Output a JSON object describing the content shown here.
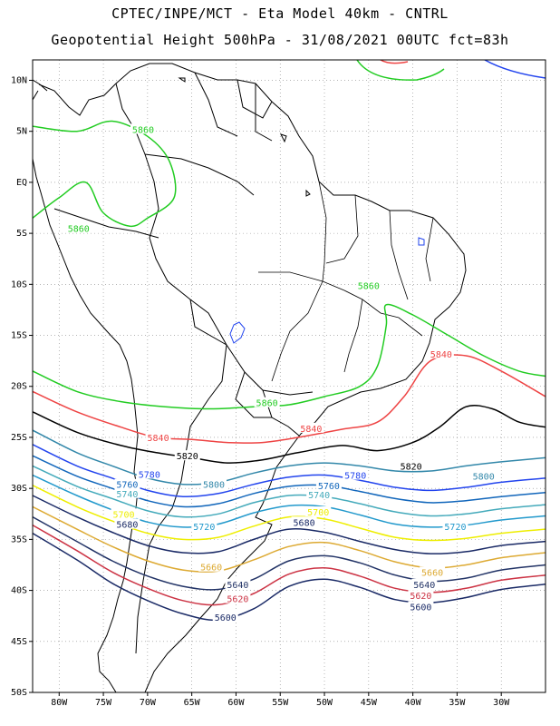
{
  "header": {
    "line1": "CPTEC/INPE/MCT  -  Eta Model 40km  - CNTRL",
    "line2": "Geopotential Height 500hPa  - 31/08/2021 00UTC fct=83h"
  },
  "axes": {
    "lon_range": [
      -83,
      -25
    ],
    "lat_range": [
      -50,
      12
    ],
    "x_ticks": [
      {
        "lon": -80,
        "label": "80W"
      },
      {
        "lon": -75,
        "label": "75W"
      },
      {
        "lon": -70,
        "label": "70W"
      },
      {
        "lon": -65,
        "label": "65W"
      },
      {
        "lon": -60,
        "label": "60W"
      },
      {
        "lon": -55,
        "label": "55W"
      },
      {
        "lon": -50,
        "label": "50W"
      },
      {
        "lon": -45,
        "label": "45W"
      },
      {
        "lon": -40,
        "label": "40W"
      },
      {
        "lon": -35,
        "label": "35W"
      },
      {
        "lon": -30,
        "label": "30W"
      }
    ],
    "y_ticks": [
      {
        "lat": 10,
        "label": "10N"
      },
      {
        "lat": 5,
        "label": "5N"
      },
      {
        "lat": 0,
        "label": "EQ"
      },
      {
        "lat": -5,
        "label": "5S"
      },
      {
        "lat": -10,
        "label": "10S"
      },
      {
        "lat": -15,
        "label": "15S"
      },
      {
        "lat": -20,
        "label": "20S"
      },
      {
        "lat": -25,
        "label": "25S"
      },
      {
        "lat": -30,
        "label": "30S"
      },
      {
        "lat": -35,
        "label": "35S"
      },
      {
        "lat": -40,
        "label": "40S"
      },
      {
        "lat": -45,
        "label": "45S"
      },
      {
        "lat": -50,
        "label": "50S"
      }
    ],
    "grid": "dotted"
  },
  "colors": {
    "c5860": "#22cc22",
    "c5840": "#ee4444",
    "c5820": "#000000",
    "c5800": "#3388aa",
    "c5780": "#2244ee",
    "c5760": "#1166bb",
    "c5740": "#44aabb",
    "c5720": "#2299cc",
    "c5700": "#eeee00",
    "c5680": "#1a2a66",
    "c5660": "#ddaa33",
    "c5640": "#223366",
    "c5620": "#cc3344",
    "c5600": "#1a2a66",
    "coast": "#000000"
  },
  "contours": [
    {
      "value": "5860",
      "color": "#22cc22",
      "points": [
        [
          -83,
          -18.5
        ],
        [
          -78,
          -20.5
        ],
        [
          -73,
          -21.5
        ],
        [
          -68,
          -22
        ],
        [
          -63,
          -22.2
        ],
        [
          -58,
          -22
        ],
        [
          -54,
          -21.8
        ],
        [
          -50,
          -21
        ],
        [
          -46,
          -20
        ],
        [
          -44,
          -18
        ],
        [
          -43,
          -14
        ],
        [
          -43,
          -12
        ],
        [
          -40,
          -13
        ],
        [
          -36,
          -15
        ],
        [
          -32,
          -17
        ],
        [
          -28,
          -18.5
        ],
        [
          -25,
          -19
        ]
      ]
    },
    {
      "value": "5860",
      "color": "#22cc22",
      "points": [
        [
          -83,
          -3.5
        ],
        [
          -80,
          -1.5
        ],
        [
          -77,
          0
        ],
        [
          -75,
          -3
        ],
        [
          -72,
          -4.3
        ],
        [
          -70,
          -3.5
        ],
        [
          -67,
          -1.5
        ],
        [
          -67.5,
          2
        ],
        [
          -70,
          4.5
        ],
        [
          -74,
          6
        ],
        [
          -78,
          5
        ],
        [
          -83,
          5.5
        ]
      ]
    },
    {
      "value": "5840",
      "color": "#ee4444",
      "points": [
        [
          -83,
          -20.5
        ],
        [
          -78,
          -22.5
        ],
        [
          -73,
          -24
        ],
        [
          -69,
          -25
        ],
        [
          -65,
          -25.2
        ],
        [
          -61,
          -25.5
        ],
        [
          -57,
          -25.5
        ],
        [
          -53,
          -25
        ],
        [
          -48,
          -24.2
        ],
        [
          -44,
          -23.5
        ],
        [
          -41,
          -21
        ],
        [
          -38,
          -17.5
        ],
        [
          -34,
          -17
        ],
        [
          -30,
          -18.5
        ],
        [
          -25,
          -21
        ]
      ]
    },
    {
      "value": "5820",
      "color": "#000000",
      "points": [
        [
          -83,
          -22.5
        ],
        [
          -78,
          -24.5
        ],
        [
          -73,
          -25.8
        ],
        [
          -69,
          -26.5
        ],
        [
          -65,
          -27
        ],
        [
          -61,
          -27.5
        ],
        [
          -57,
          -27.2
        ],
        [
          -53,
          -26.5
        ],
        [
          -48,
          -25.8
        ],
        [
          -44,
          -26.3
        ],
        [
          -40,
          -25.5
        ],
        [
          -37,
          -24
        ],
        [
          -34,
          -22
        ],
        [
          -31,
          -22.2
        ],
        [
          -28,
          -23.5
        ],
        [
          -25,
          -24
        ]
      ]
    },
    {
      "value": "5800",
      "color": "#3388aa",
      "points": [
        [
          -83,
          -24.3
        ],
        [
          -78,
          -26.5
        ],
        [
          -74,
          -27.8
        ],
        [
          -70,
          -29
        ],
        [
          -66,
          -29.6
        ],
        [
          -62,
          -29.4
        ],
        [
          -58,
          -28.5
        ],
        [
          -54,
          -27.8
        ],
        [
          -50,
          -27.5
        ],
        [
          -46,
          -27.8
        ],
        [
          -42,
          -28.3
        ],
        [
          -38,
          -28.3
        ],
        [
          -34,
          -27.8
        ],
        [
          -30,
          -27.4
        ],
        [
          -25,
          -27
        ]
      ]
    },
    {
      "value": "5780",
      "color": "#2244ee",
      "points": [
        [
          -83,
          -25.7
        ],
        [
          -78,
          -27.8
        ],
        [
          -74,
          -29
        ],
        [
          -70,
          -30.2
        ],
        [
          -66,
          -30.8
        ],
        [
          -62,
          -30.5
        ],
        [
          -58,
          -29.6
        ],
        [
          -54,
          -28.9
        ],
        [
          -50,
          -28.7
        ],
        [
          -46,
          -29.2
        ],
        [
          -42,
          -29.9
        ],
        [
          -38,
          -30.2
        ],
        [
          -34,
          -29.9
        ],
        [
          -30,
          -29.4
        ],
        [
          -25,
          -29
        ]
      ]
    },
    {
      "value": "5760",
      "color": "#1166bb",
      "points": [
        [
          -83,
          -26.8
        ],
        [
          -78,
          -28.8
        ],
        [
          -74,
          -30
        ],
        [
          -70,
          -31.2
        ],
        [
          -66,
          -31.8
        ],
        [
          -62,
          -31.5
        ],
        [
          -58,
          -30.5
        ],
        [
          -54,
          -29.8
        ],
        [
          -50,
          -29.7
        ],
        [
          -46,
          -30.3
        ],
        [
          -42,
          -31
        ],
        [
          -38,
          -31.4
        ],
        [
          -34,
          -31.2
        ],
        [
          -30,
          -30.8
        ],
        [
          -25,
          -30.4
        ]
      ]
    },
    {
      "value": "5740",
      "color": "#44aabb",
      "points": [
        [
          -83,
          -27.8
        ],
        [
          -78,
          -29.8
        ],
        [
          -74,
          -31
        ],
        [
          -70,
          -32.2
        ],
        [
          -66,
          -32.8
        ],
        [
          -62,
          -32.5
        ],
        [
          -58,
          -31.4
        ],
        [
          -54,
          -30.7
        ],
        [
          -50,
          -30.8
        ],
        [
          -46,
          -31.5
        ],
        [
          -42,
          -32.3
        ],
        [
          -38,
          -32.7
        ],
        [
          -34,
          -32.5
        ],
        [
          -30,
          -32
        ],
        [
          -25,
          -31.6
        ]
      ]
    },
    {
      "value": "5720",
      "color": "#2299cc",
      "points": [
        [
          -83,
          -28.7
        ],
        [
          -78,
          -30.7
        ],
        [
          -74,
          -32.1
        ],
        [
          -70,
          -33.3
        ],
        [
          -66,
          -33.8
        ],
        [
          -62,
          -33.5
        ],
        [
          -58,
          -32.4
        ],
        [
          -54,
          -31.7
        ],
        [
          -50,
          -31.8
        ],
        [
          -46,
          -32.6
        ],
        [
          -42,
          -33.5
        ],
        [
          -38,
          -33.8
        ],
        [
          -34,
          -33.6
        ],
        [
          -30,
          -33.1
        ],
        [
          -25,
          -32.7
        ]
      ]
    },
    {
      "value": "5700",
      "color": "#eeee00",
      "points": [
        [
          -83,
          -29.7
        ],
        [
          -78,
          -31.8
        ],
        [
          -74,
          -33.2
        ],
        [
          -70,
          -34.4
        ],
        [
          -66,
          -35
        ],
        [
          -62,
          -34.8
        ],
        [
          -58,
          -33.7
        ],
        [
          -54,
          -32.8
        ],
        [
          -50,
          -33
        ],
        [
          -46,
          -33.9
        ],
        [
          -42,
          -34.8
        ],
        [
          -38,
          -35.1
        ],
        [
          -34,
          -34.9
        ],
        [
          -30,
          -34.4
        ],
        [
          -25,
          -34
        ]
      ]
    },
    {
      "value": "5680",
      "color": "#1a2a66",
      "points": [
        [
          -83,
          -30.7
        ],
        [
          -78,
          -32.8
        ],
        [
          -74,
          -34.3
        ],
        [
          -70,
          -35.6
        ],
        [
          -66,
          -36.3
        ],
        [
          -62,
          -36.2
        ],
        [
          -58,
          -35
        ],
        [
          -54,
          -34
        ],
        [
          -50,
          -34.3
        ],
        [
          -46,
          -35.2
        ],
        [
          -42,
          -36
        ],
        [
          -38,
          -36.4
        ],
        [
          -34,
          -36.2
        ],
        [
          -30,
          -35.6
        ],
        [
          -25,
          -35.2
        ]
      ]
    },
    {
      "value": "5660",
      "color": "#ddaa33",
      "points": [
        [
          -83,
          -31.8
        ],
        [
          -78,
          -34
        ],
        [
          -74,
          -35.7
        ],
        [
          -70,
          -37.1
        ],
        [
          -66,
          -38
        ],
        [
          -62,
          -38.1
        ],
        [
          -58,
          -37
        ],
        [
          -54,
          -35.7
        ],
        [
          -50,
          -35.3
        ],
        [
          -46,
          -36.1
        ],
        [
          -42,
          -37.2
        ],
        [
          -38,
          -37.8
        ],
        [
          -34,
          -37.5
        ],
        [
          -30,
          -36.8
        ],
        [
          -25,
          -36.3
        ]
      ]
    },
    {
      "value": "5640",
      "color": "#223366",
      "points": [
        [
          -83,
          -32.8
        ],
        [
          -78,
          -35.2
        ],
        [
          -74,
          -37.1
        ],
        [
          -70,
          -38.6
        ],
        [
          -66,
          -39.6
        ],
        [
          -62,
          -39.9
        ],
        [
          -58,
          -38.9
        ],
        [
          -54,
          -37.1
        ],
        [
          -50,
          -36.6
        ],
        [
          -46,
          -37.3
        ],
        [
          -42,
          -38.5
        ],
        [
          -38,
          -39.1
        ],
        [
          -34,
          -38.8
        ],
        [
          -30,
          -38
        ],
        [
          -25,
          -37.5
        ]
      ]
    },
    {
      "value": "5620",
      "color": "#cc3344",
      "points": [
        [
          -83,
          -33.6
        ],
        [
          -78,
          -36.1
        ],
        [
          -74,
          -38.2
        ],
        [
          -70,
          -39.8
        ],
        [
          -66,
          -41
        ],
        [
          -62,
          -41.4
        ],
        [
          -58,
          -40.3
        ],
        [
          -54,
          -38.4
        ],
        [
          -50,
          -37.8
        ],
        [
          -46,
          -38.6
        ],
        [
          -42,
          -39.8
        ],
        [
          -38,
          -40.2
        ],
        [
          -34,
          -39.8
        ],
        [
          -30,
          -39
        ],
        [
          -25,
          -38.5
        ]
      ]
    },
    {
      "value": "5600",
      "color": "#1a2a66",
      "points": [
        [
          -83,
          -34.4
        ],
        [
          -78,
          -37
        ],
        [
          -74,
          -39.3
        ],
        [
          -70,
          -41
        ],
        [
          -66,
          -42.3
        ],
        [
          -62,
          -42.9
        ],
        [
          -58,
          -41.8
        ],
        [
          -54,
          -39.6
        ],
        [
          -50,
          -38.9
        ],
        [
          -46,
          -39.7
        ],
        [
          -42,
          -40.9
        ],
        [
          -38,
          -41.2
        ],
        [
          -34,
          -40.7
        ],
        [
          -30,
          -39.9
        ],
        [
          -25,
          -39.4
        ]
      ]
    }
  ],
  "contour_labels": [
    {
      "text": "5860",
      "color": "#22cc22",
      "lon": -70.5,
      "lat": 5.2
    },
    {
      "text": "5860",
      "color": "#22cc22",
      "lon": -77.8,
      "lat": -4.5
    },
    {
      "text": "5860",
      "color": "#22cc22",
      "lon": -45,
      "lat": -10.1
    },
    {
      "text": "5860",
      "color": "#22cc22",
      "lon": -56.5,
      "lat": -21.6
    },
    {
      "text": "5840",
      "color": "#ee4444",
      "lon": -36.8,
      "lat": -16.8
    },
    {
      "text": "5840",
      "color": "#ee4444",
      "lon": -51.5,
      "lat": -24.1
    },
    {
      "text": "5840",
      "color": "#ee4444",
      "lon": -68.8,
      "lat": -25
    },
    {
      "text": "5820",
      "color": "#000000",
      "lon": -65.5,
      "lat": -26.8
    },
    {
      "text": "5820",
      "color": "#000000",
      "lon": -40.2,
      "lat": -27.8
    },
    {
      "text": "5800",
      "color": "#3388aa",
      "lon": -62.5,
      "lat": -29.6
    },
    {
      "text": "5800",
      "color": "#3388aa",
      "lon": -32,
      "lat": -28.8
    },
    {
      "text": "5780",
      "color": "#2244ee",
      "lon": -69.8,
      "lat": -28.6
    },
    {
      "text": "5780",
      "color": "#2244ee",
      "lon": -46.5,
      "lat": -28.7
    },
    {
      "text": "5760",
      "color": "#1166bb",
      "lon": -72.3,
      "lat": -29.6
    },
    {
      "text": "5760",
      "color": "#1166bb",
      "lon": -49.5,
      "lat": -29.7
    },
    {
      "text": "5740",
      "color": "#44aabb",
      "lon": -72.3,
      "lat": -30.5
    },
    {
      "text": "5740",
      "color": "#44aabb",
      "lon": -50.6,
      "lat": -30.6
    },
    {
      "text": "5720",
      "color": "#2299cc",
      "lon": -63.6,
      "lat": -33.7
    },
    {
      "text": "5720",
      "color": "#2299cc",
      "lon": -35.2,
      "lat": -33.7
    },
    {
      "text": "5700",
      "color": "#eeee00",
      "lon": -72.7,
      "lat": -32.5
    },
    {
      "text": "5700",
      "color": "#eeee00",
      "lon": -50.7,
      "lat": -32.3
    },
    {
      "text": "5680",
      "color": "#1a2a66",
      "lon": -72.3,
      "lat": -33.5
    },
    {
      "text": "5680",
      "color": "#1a2a66",
      "lon": -52.3,
      "lat": -33.3
    },
    {
      "text": "5660",
      "color": "#ddaa33",
      "lon": -62.8,
      "lat": -37.7
    },
    {
      "text": "5660",
      "color": "#ddaa33",
      "lon": -37.8,
      "lat": -38.2
    },
    {
      "text": "5640",
      "color": "#223366",
      "lon": -59.8,
      "lat": -39.4
    },
    {
      "text": "5640",
      "color": "#223366",
      "lon": -38.7,
      "lat": -39.4
    },
    {
      "text": "5620",
      "color": "#cc3344",
      "lon": -59.8,
      "lat": -40.8
    },
    {
      "text": "5620",
      "color": "#cc3344",
      "lon": -39.1,
      "lat": -40.5
    },
    {
      "text": "5600",
      "color": "#1a2a66",
      "lon": -61.2,
      "lat": -42.6
    },
    {
      "text": "5600",
      "color": "#1a2a66",
      "lon": -39.1,
      "lat": -41.6
    }
  ]
}
